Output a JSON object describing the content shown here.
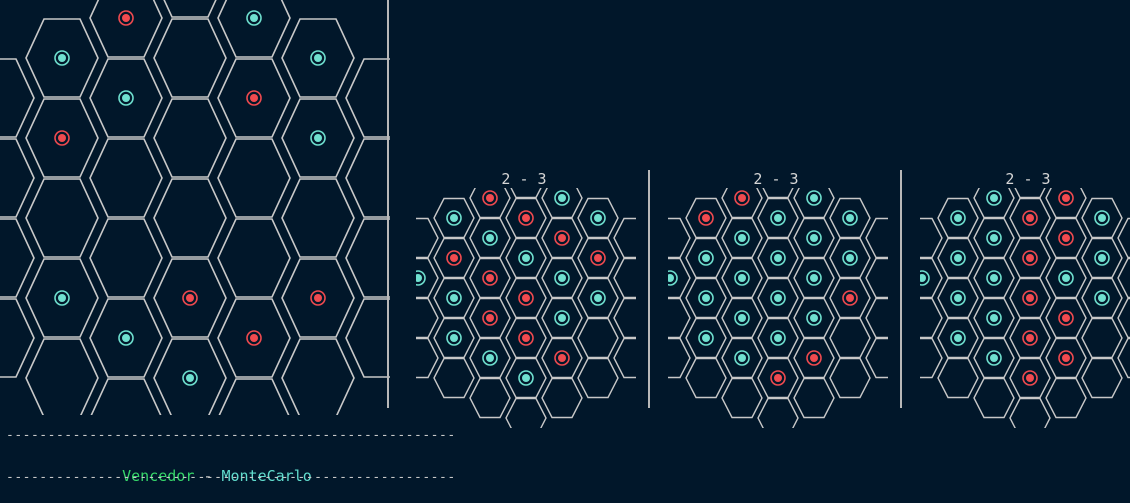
{
  "colors": {
    "background": "#01172a",
    "grid": "#c8c8c8",
    "red_piece": "#f04a4f",
    "teal_piece": "#6fe0cf",
    "winner_label": "#36d76a",
    "winner_name": "#61dccd"
  },
  "main_board": {
    "pieces": [
      {
        "q": 0,
        "r": -3,
        "color": "red"
      },
      {
        "q": -1,
        "r": -2,
        "color": "red"
      },
      {
        "q": 1,
        "r": -3,
        "color": "teal"
      },
      {
        "q": -2,
        "r": -1,
        "color": "teal"
      },
      {
        "q": -1,
        "r": -1,
        "color": "teal"
      },
      {
        "q": 1,
        "r": -2,
        "color": "red"
      },
      {
        "q": 2,
        "r": -3,
        "color": "teal"
      },
      {
        "q": -2,
        "r": 0,
        "color": "red"
      },
      {
        "q": 2,
        "r": -2,
        "color": "teal"
      },
      {
        "q": -2,
        "r": 2,
        "color": "teal"
      },
      {
        "q": -1,
        "r": 2,
        "color": "teal"
      },
      {
        "q": 0,
        "r": 1,
        "color": "red"
      },
      {
        "q": 1,
        "r": 1,
        "color": "red"
      },
      {
        "q": 0,
        "r": 2,
        "color": "teal"
      },
      {
        "q": 2,
        "r": 0,
        "color": "red"
      }
    ]
  },
  "small_boards": [
    {
      "score": "2 - 3",
      "pieces": [
        {
          "q": 0,
          "r": -3,
          "color": "teal"
        },
        {
          "q": -1,
          "r": -2,
          "color": "red"
        },
        {
          "q": 0,
          "r": -2,
          "color": "red"
        },
        {
          "q": 1,
          "r": -3,
          "color": "teal"
        },
        {
          "q": -2,
          "r": -1,
          "color": "teal"
        },
        {
          "q": -1,
          "r": -1,
          "color": "teal"
        },
        {
          "q": 0,
          "r": -1,
          "color": "teal"
        },
        {
          "q": 1,
          "r": -2,
          "color": "red"
        },
        {
          "q": 2,
          "r": -3,
          "color": "teal"
        },
        {
          "q": -2,
          "r": 0,
          "color": "red"
        },
        {
          "q": -1,
          "r": 0,
          "color": "red"
        },
        {
          "q": 0,
          "r": 0,
          "color": "red"
        },
        {
          "q": 1,
          "r": -1,
          "color": "teal"
        },
        {
          "q": 2,
          "r": -2,
          "color": "red"
        },
        {
          "q": -3,
          "r": 1,
          "color": "teal"
        },
        {
          "q": -2,
          "r": 1,
          "color": "teal"
        },
        {
          "q": -1,
          "r": 1,
          "color": "red"
        },
        {
          "q": 0,
          "r": 1,
          "color": "red"
        },
        {
          "q": 1,
          "r": 0,
          "color": "teal"
        },
        {
          "q": 2,
          "r": -1,
          "color": "teal"
        },
        {
          "q": -2,
          "r": 2,
          "color": "teal"
        },
        {
          "q": -1,
          "r": 2,
          "color": "teal"
        },
        {
          "q": 0,
          "r": 2,
          "color": "teal"
        },
        {
          "q": 1,
          "r": 1,
          "color": "red"
        }
      ]
    },
    {
      "score": "2 - 3",
      "pieces": [
        {
          "q": 0,
          "r": -3,
          "color": "red"
        },
        {
          "q": -1,
          "r": -2,
          "color": "red"
        },
        {
          "q": 0,
          "r": -2,
          "color": "teal"
        },
        {
          "q": 1,
          "r": -3,
          "color": "teal"
        },
        {
          "q": -2,
          "r": -1,
          "color": "red"
        },
        {
          "q": -1,
          "r": -1,
          "color": "teal"
        },
        {
          "q": 0,
          "r": -1,
          "color": "teal"
        },
        {
          "q": 1,
          "r": -2,
          "color": "teal"
        },
        {
          "q": 2,
          "r": -3,
          "color": "teal"
        },
        {
          "q": -2,
          "r": 0,
          "color": "teal"
        },
        {
          "q": -1,
          "r": 0,
          "color": "teal"
        },
        {
          "q": 0,
          "r": 0,
          "color": "teal"
        },
        {
          "q": 1,
          "r": -1,
          "color": "teal"
        },
        {
          "q": 2,
          "r": -2,
          "color": "teal"
        },
        {
          "q": -3,
          "r": 1,
          "color": "teal"
        },
        {
          "q": -2,
          "r": 1,
          "color": "teal"
        },
        {
          "q": -1,
          "r": 1,
          "color": "teal"
        },
        {
          "q": 0,
          "r": 1,
          "color": "teal"
        },
        {
          "q": 1,
          "r": 0,
          "color": "teal"
        },
        {
          "q": 2,
          "r": -1,
          "color": "red"
        },
        {
          "q": -2,
          "r": 2,
          "color": "teal"
        },
        {
          "q": -1,
          "r": 2,
          "color": "teal"
        },
        {
          "q": 0,
          "r": 2,
          "color": "red"
        },
        {
          "q": 1,
          "r": 1,
          "color": "red"
        }
      ]
    },
    {
      "score": "2 - 3",
      "pieces": [
        {
          "q": 0,
          "r": -3,
          "color": "red"
        },
        {
          "q": -1,
          "r": -2,
          "color": "teal"
        },
        {
          "q": 0,
          "r": -2,
          "color": "red"
        },
        {
          "q": 1,
          "r": -3,
          "color": "red"
        },
        {
          "q": -2,
          "r": -1,
          "color": "teal"
        },
        {
          "q": -1,
          "r": -1,
          "color": "teal"
        },
        {
          "q": 0,
          "r": -1,
          "color": "red"
        },
        {
          "q": 1,
          "r": -2,
          "color": "red"
        },
        {
          "q": 2,
          "r": -3,
          "color": "teal"
        },
        {
          "q": -2,
          "r": 0,
          "color": "teal"
        },
        {
          "q": -1,
          "r": 0,
          "color": "teal"
        },
        {
          "q": 0,
          "r": 0,
          "color": "red"
        },
        {
          "q": 1,
          "r": -1,
          "color": "teal"
        },
        {
          "q": 2,
          "r": -2,
          "color": "teal"
        },
        {
          "q": -3,
          "r": 1,
          "color": "teal"
        },
        {
          "q": -2,
          "r": 1,
          "color": "teal"
        },
        {
          "q": -1,
          "r": 1,
          "color": "teal"
        },
        {
          "q": 0,
          "r": 1,
          "color": "red"
        },
        {
          "q": 1,
          "r": 0,
          "color": "red"
        },
        {
          "q": 2,
          "r": -1,
          "color": "teal"
        },
        {
          "q": -2,
          "r": 2,
          "color": "teal"
        },
        {
          "q": -1,
          "r": 2,
          "color": "teal"
        },
        {
          "q": 0,
          "r": 2,
          "color": "red"
        },
        {
          "q": 1,
          "r": 1,
          "color": "red"
        }
      ]
    }
  ],
  "footer": {
    "dash_line": "------------------------------------------------------",
    "winner_label": "Vencedor",
    "separator": " - ",
    "winner_name": "MonteCarlo"
  }
}
